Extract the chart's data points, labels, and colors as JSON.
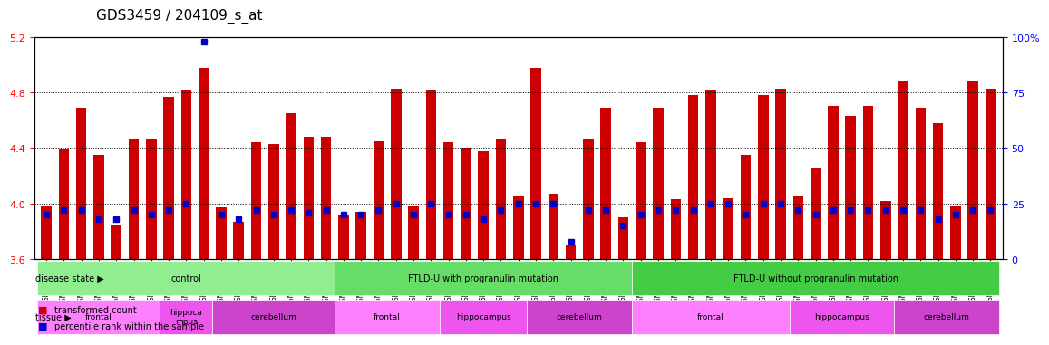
{
  "title": "GDS3459 / 204109_s_at",
  "sample_labels": [
    "GSM329662",
    "GSM329663",
    "GSM329664",
    "GSM329665",
    "GSM329667",
    "GSM329670",
    "GSM329672",
    "GSM329674",
    "GSM329675",
    "GSM329668",
    "GSM329669",
    "GSM329682",
    "GSM329665",
    "GSM329668",
    "GSM329673",
    "GSM329676",
    "GSM329675",
    "GSM329679",
    "GSM329677",
    "GSM329679",
    "GSM329681",
    "GSM329683",
    "GSM329688",
    "GSM329689",
    "GSM329678",
    "GSM329680",
    "GSM329685",
    "GSM329688",
    "GSM329691",
    "GSM329682",
    "GSM329684",
    "GSM329687",
    "GSM329690",
    "GSM329692",
    "GSM329694",
    "GSM329697",
    "GSM329700",
    "GSM329703",
    "GSM329704",
    "GSM329707",
    "GSM329709",
    "GSM329711",
    "GSM329714",
    "GSM329699",
    "GSM329696",
    "GSM329702",
    "GSM329706",
    "GSM329710",
    "GSM329713",
    "GSM329695",
    "GSM329698",
    "GSM329701",
    "GSM329705",
    "GSM329712",
    "GSM329715"
  ],
  "transformed_count": [
    3.98,
    4.39,
    4.69,
    4.35,
    3.85,
    4.47,
    4.46,
    4.77,
    4.82,
    4.98,
    3.97,
    3.87,
    4.44,
    4.43,
    4.65,
    4.48,
    4.48,
    3.92,
    3.94,
    4.45,
    4.83,
    3.98,
    4.82,
    4.44,
    4.4,
    4.38,
    4.47,
    4.05,
    4.98,
    4.07,
    3.7,
    4.47,
    4.69,
    3.9,
    4.44,
    4.69,
    4.03,
    4.78,
    4.82,
    4.04,
    4.35,
    4.78,
    4.83,
    4.05,
    4.25,
    4.7,
    4.63,
    4.7,
    4.02,
    4.88,
    4.69,
    4.58,
    3.98,
    4.88,
    4.83
  ],
  "percentile_rank": [
    20,
    22,
    22,
    18,
    18,
    22,
    20,
    22,
    25,
    98,
    20,
    18,
    22,
    20,
    22,
    21,
    22,
    20,
    20,
    22,
    25,
    20,
    25,
    20,
    20,
    18,
    22,
    25,
    25,
    25,
    8,
    22,
    22,
    15,
    20,
    22,
    22,
    22,
    25,
    25,
    20,
    25,
    25,
    22,
    20,
    22,
    22,
    22,
    22,
    22,
    22,
    18,
    20,
    22,
    22
  ],
  "ylim_left": [
    3.6,
    5.2
  ],
  "ylim_right": [
    0,
    100
  ],
  "yticks_left": [
    3.6,
    4.0,
    4.4,
    4.8,
    5.2
  ],
  "yticks_right": [
    0,
    25,
    50,
    75,
    100
  ],
  "bar_color": "#cc0000",
  "marker_color": "#0000cc",
  "bar_bottom": 3.6,
  "disease_state_groups": [
    {
      "label": "control",
      "start": 0,
      "end": 17,
      "color": "#90EE90"
    },
    {
      "label": "FTLD-U with progranulin mutation",
      "start": 17,
      "end": 34,
      "color": "#66DD66"
    },
    {
      "label": "FTLD-U without progranulin mutation",
      "start": 34,
      "end": 55,
      "color": "#44CC44"
    }
  ],
  "tissue_groups": [
    {
      "label": "frontal",
      "start": 0,
      "end": 7,
      "color": "#FF80FF"
    },
    {
      "label": "hippoca\nmpus",
      "start": 7,
      "end": 10,
      "color": "#EE55EE"
    },
    {
      "label": "cerebellum",
      "start": 10,
      "end": 17,
      "color": "#CC44CC"
    },
    {
      "label": "frontal",
      "start": 17,
      "end": 23,
      "color": "#FF80FF"
    },
    {
      "label": "hippocampus",
      "start": 23,
      "end": 28,
      "color": "#EE55EE"
    },
    {
      "label": "cerebellum",
      "start": 28,
      "end": 34,
      "color": "#CC44CC"
    },
    {
      "label": "frontal",
      "start": 34,
      "end": 43,
      "color": "#FF80FF"
    },
    {
      "label": "hippocampus",
      "start": 43,
      "end": 49,
      "color": "#EE55EE"
    },
    {
      "label": "cerebellum",
      "start": 49,
      "end": 55,
      "color": "#CC44CC"
    }
  ],
  "legend_items": [
    {
      "label": "transformed count",
      "color": "#cc0000"
    },
    {
      "label": "percentile rank within the sample",
      "color": "#0000cc"
    }
  ]
}
